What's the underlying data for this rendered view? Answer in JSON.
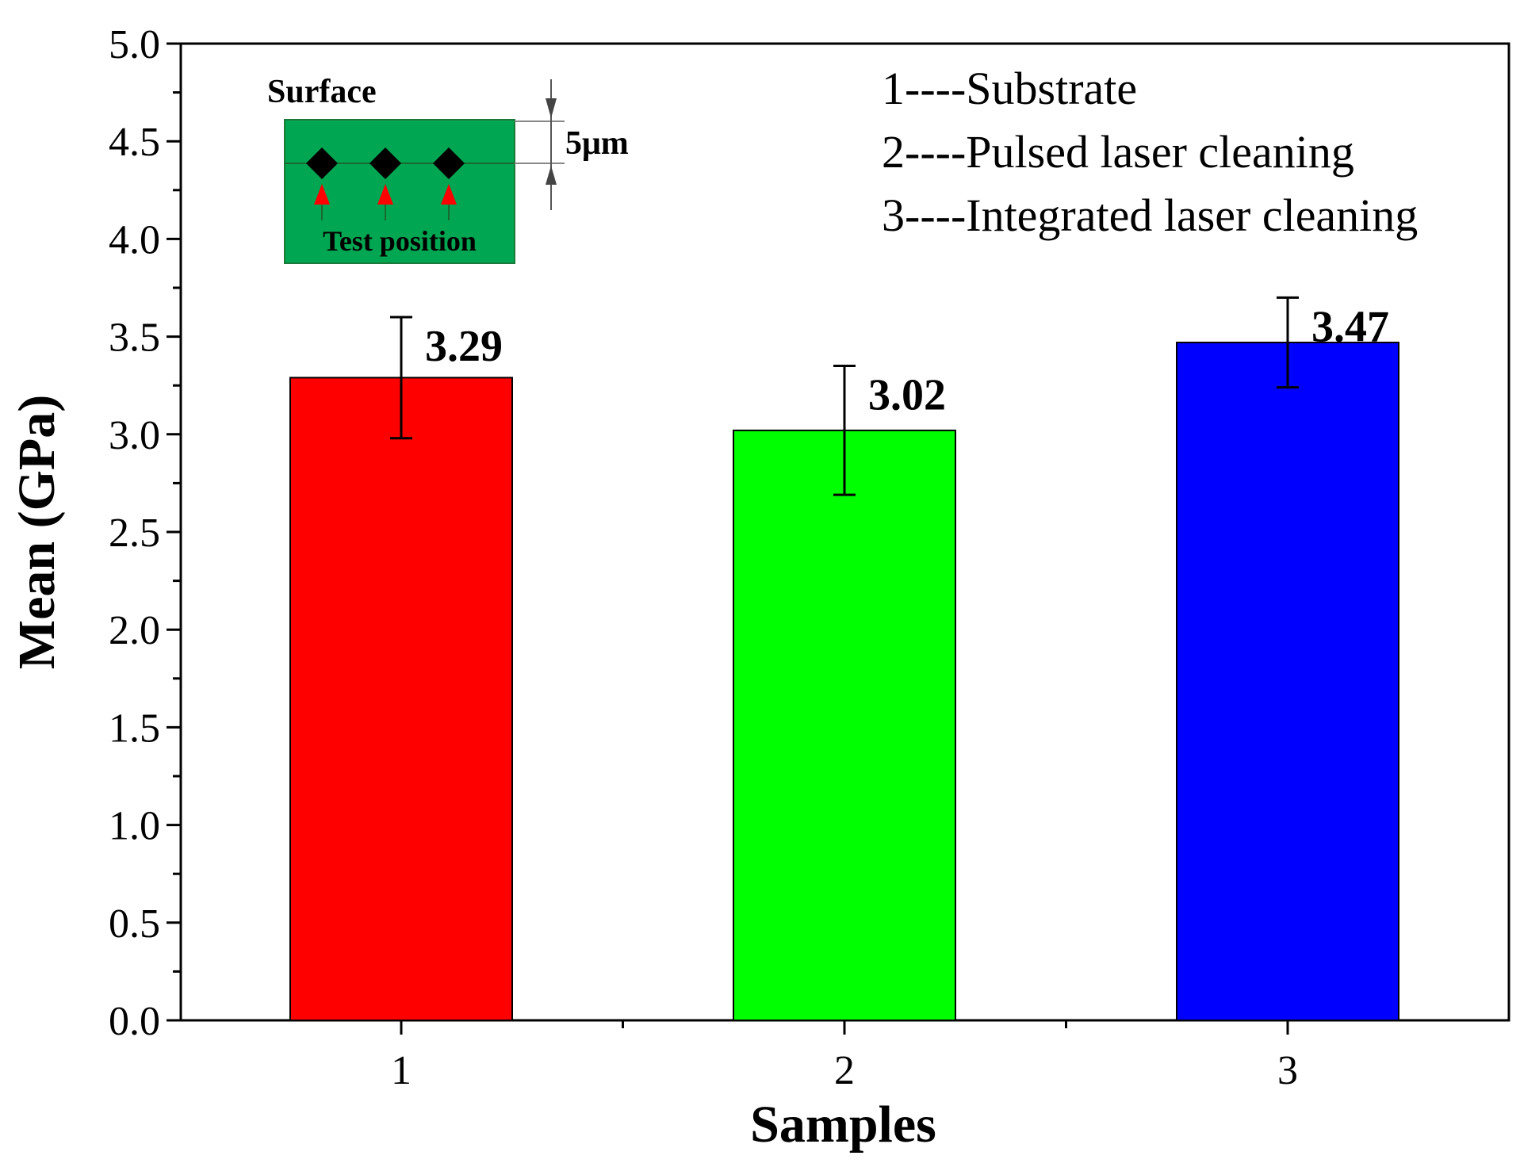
{
  "chart_data": {
    "type": "bar",
    "title": "",
    "xlabel": "Samples",
    "ylabel": "Mean (GPa)",
    "categories": [
      "1",
      "2",
      "3"
    ],
    "values": [
      3.29,
      3.02,
      3.47
    ],
    "error": [
      0.31,
      0.33,
      0.23
    ],
    "data_labels": [
      "3.29",
      "3.02",
      "3.47"
    ],
    "colors": [
      "#ff0000",
      "#00ff00",
      "#0000ff"
    ],
    "ylim": [
      0,
      5.0
    ],
    "yticks": [
      "0.0",
      "0.5",
      "1.0",
      "1.5",
      "2.0",
      "2.5",
      "3.0",
      "3.5",
      "4.0",
      "4.5",
      "5.0"
    ],
    "ytick_values": [
      0,
      0.5,
      1.0,
      1.5,
      2.0,
      2.5,
      3.0,
      3.5,
      4.0,
      4.5,
      5.0
    ],
    "grid": false,
    "legend_position": "top-right",
    "legend": [
      "1----Substrate",
      "2----Pulsed laser cleaning",
      "3----Integrated laser cleaning"
    ]
  },
  "inset": {
    "surface_label": "Surface",
    "depth_label": "5μm",
    "test_position_label": "Test position",
    "box_color": "#00a651",
    "marker_count": 3
  }
}
